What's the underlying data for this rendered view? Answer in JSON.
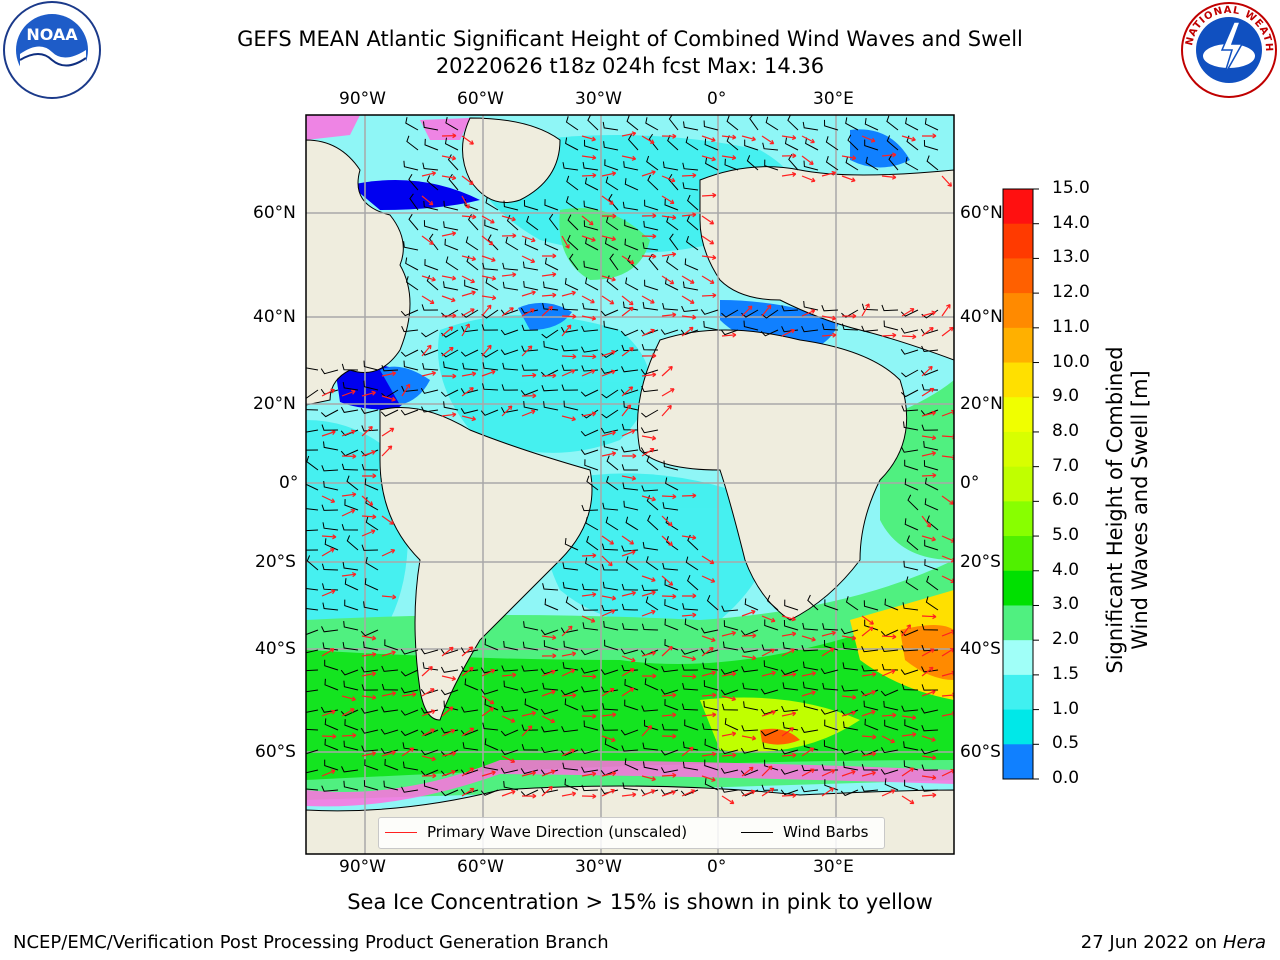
{
  "header": {
    "title_line1": "GEFS MEAN Atlantic Significant Height of Combined Wind Waves and Swell",
    "title_line2": "20220626 t18z 024h fcst   Max: 14.36"
  },
  "map": {
    "lon_ticks": [
      "90°W",
      "60°W",
      "30°W",
      "0°",
      "30°E"
    ],
    "lat_ticks": [
      "60°N",
      "40°N",
      "20°N",
      "0°",
      "20°S",
      "40°S",
      "60°S"
    ],
    "colors": {
      "land": "#efedde",
      "ocean_low": "#8ff6f6",
      "ocean_mid": "#3ef0ef",
      "grid": "#a8a8a8"
    }
  },
  "legend": {
    "wave_direction": "Primary Wave Direction (unscaled)",
    "wind_barbs": "Wind Barbs",
    "wave_color": "#ff2020",
    "barb_color": "#000000"
  },
  "colorbar": {
    "label_line1": "Significant Height of Combined",
    "label_line2": "Wind Waves and Swell [m]",
    "ticks": [
      "15.0",
      "14.0",
      "13.0",
      "12.0",
      "11.0",
      "10.0",
      "9.0",
      "8.0",
      "7.0",
      "6.0",
      "5.0",
      "4.0",
      "3.0",
      "2.0",
      "1.5",
      "1.0",
      "0.5",
      "0.0"
    ],
    "colors": [
      "#ff1010",
      "#ff3a00",
      "#ff6000",
      "#ff8a00",
      "#ffb000",
      "#ffe000",
      "#f0ff00",
      "#d8ff00",
      "#c0ff00",
      "#88ff00",
      "#50f000",
      "#00e000",
      "#50f080",
      "#a0fff8",
      "#40f0f0",
      "#00e8e8",
      "#1080ff",
      "#0000f0"
    ]
  },
  "footer": {
    "note": "Sea Ice Concentration > 15% is shown in pink to yellow",
    "credit_left": "NCEP/EMC/Verification Post Processing Product Generation Branch",
    "credit_date": "27 Jun 2022 on",
    "credit_system": "Hera"
  },
  "logos": {
    "noaa_text": "NOAA",
    "nws_text": "NATIONAL WEATHER SERVICE"
  }
}
